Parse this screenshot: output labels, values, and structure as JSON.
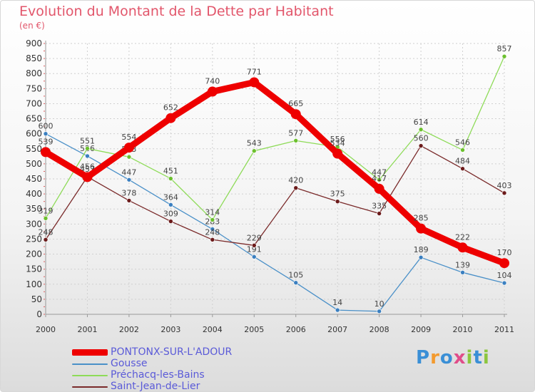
{
  "title": "Evolution du Montant de la Dette par Habitant",
  "subtitle": "(en €)",
  "logo": {
    "text": "Proxiti",
    "letters": [
      {
        "ch": "P",
        "color": "#3a8fd6"
      },
      {
        "ch": "r",
        "color": "#f39a2e"
      },
      {
        "ch": "o",
        "color": "#3a8fd6"
      },
      {
        "ch": "x",
        "color": "#e04d8a"
      },
      {
        "ch": "i",
        "color": "#8cc63f"
      },
      {
        "ch": "t",
        "color": "#3a8fd6"
      },
      {
        "ch": "i",
        "color": "#8cc63f"
      }
    ]
  },
  "chart_data": {
    "type": "line",
    "x": [
      "2000",
      "2001",
      "2002",
      "2003",
      "2004",
      "2005",
      "2006",
      "2007",
      "2008",
      "2009",
      "2010",
      "2011"
    ],
    "yticks": [
      "0",
      "50",
      "100",
      "150",
      "200",
      "250",
      "300",
      "350",
      "400",
      "450",
      "500",
      "550",
      "600",
      "650",
      "700",
      "750",
      "800",
      "850",
      "900"
    ],
    "ylim": [
      0,
      900
    ],
    "grid": true,
    "legend_position": "bottom-left",
    "series": [
      {
        "name": "Gousse",
        "color": "#4a90c8",
        "dot": "#3a7fc0",
        "values": [
          600,
          526,
          447,
          364,
          283,
          191,
          105,
          14,
          10,
          189,
          139,
          104
        ]
      },
      {
        "name": "Préchacq-les-Bains",
        "color": "#8edb58",
        "dot": "#6cc02e",
        "values": [
          319,
          551,
          523,
          451,
          314,
          543,
          577,
          556,
          447,
          614,
          546,
          857
        ]
      },
      {
        "name": "Saint-Jean-de-Lier",
        "color": "#7a2a2a",
        "dot": "#6b1a1a",
        "values": [
          248,
          457,
          378,
          309,
          248,
          229,
          420,
          375,
          335,
          560,
          484,
          403
        ]
      },
      {
        "name": "PONTONX-SUR-L'ADOUR",
        "color": "#ee0000",
        "dot": "#ee0000",
        "highlight": true,
        "values": [
          539,
          456,
          554,
          652,
          740,
          771,
          665,
          534,
          417,
          285,
          222,
          170
        ]
      }
    ],
    "legend_order": [
      "PONTONX-SUR-L'ADOUR",
      "Gousse",
      "Préchacq-les-Bains",
      "Saint-Jean-de-Lier"
    ]
  }
}
